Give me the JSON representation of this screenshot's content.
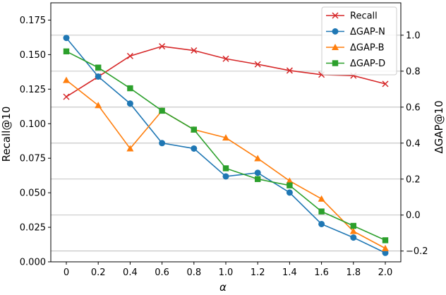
{
  "chart_data": {
    "type": "line",
    "x": [
      0,
      0.2,
      0.4,
      0.6,
      0.8,
      1.0,
      1.2,
      1.4,
      1.6,
      1.8,
      2.0
    ],
    "x_tick_labels": [
      "0",
      "0.2",
      "0.4",
      "0.6",
      "0.8",
      "1.0",
      "1.2",
      "1.4",
      "1.6",
      "1.8",
      "2.0"
    ],
    "xlabel": "α",
    "ylabel_left": "Recall@10",
    "ylabel_right": "ΔGAP@10",
    "ylim_left": [
      0,
      0.1875
    ],
    "ylim_right": [
      -0.26,
      1.18
    ],
    "left_ticks": [
      0.0,
      0.025,
      0.05,
      0.075,
      0.1,
      0.125,
      0.15,
      0.175
    ],
    "left_tick_labels": [
      "0.000",
      "0.025",
      "0.050",
      "0.075",
      "0.100",
      "0.125",
      "0.150",
      "0.175"
    ],
    "right_ticks": [
      -0.2,
      0.0,
      0.2,
      0.4,
      0.6,
      0.8,
      1.0
    ],
    "right_tick_labels": [
      "−0.2",
      "0.0",
      "0.2",
      "0.4",
      "0.6",
      "0.8",
      "1.0"
    ],
    "grid": "horizontal lines at right-axis ticks",
    "legend_position": "top-right",
    "series": [
      {
        "name": "Recall",
        "axis": "left",
        "color": "#d62728",
        "marker": "x",
        "values": [
          0.1195,
          0.134,
          0.149,
          0.156,
          0.153,
          0.147,
          0.143,
          0.1385,
          0.1355,
          0.1348,
          0.1288
        ]
      },
      {
        "name": "ΔGAP-N",
        "axis": "right",
        "color": "#1f77b4",
        "marker": "circle",
        "values": [
          0.985,
          0.77,
          0.62,
          0.4,
          0.37,
          0.215,
          0.235,
          0.125,
          -0.05,
          -0.125,
          -0.21
        ]
      },
      {
        "name": "ΔGAP-B",
        "axis": "right",
        "color": "#ff7f0e",
        "marker": "triangle",
        "values": [
          0.75,
          0.61,
          0.37,
          0.58,
          0.475,
          0.43,
          0.315,
          0.19,
          0.09,
          -0.09,
          -0.185
        ]
      },
      {
        "name": "ΔGAP-D",
        "axis": "right",
        "color": "#2ca02c",
        "marker": "square",
        "values": [
          0.91,
          0.82,
          0.705,
          0.58,
          0.475,
          0.26,
          0.2,
          0.165,
          0.02,
          -0.06,
          -0.14
        ]
      }
    ]
  }
}
